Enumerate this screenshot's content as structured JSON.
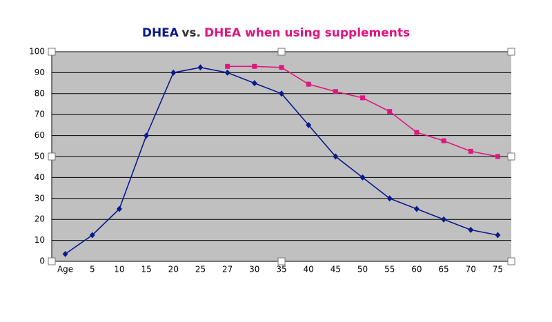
{
  "chart_data": {
    "type": "line",
    "title_connector": "vs.",
    "categories": [
      "Age",
      "5",
      "10",
      "15",
      "20",
      "25",
      "27",
      "30",
      "35",
      "40",
      "45",
      "50",
      "55",
      "60",
      "65",
      "70",
      "75"
    ],
    "series": [
      {
        "name": "DHEA",
        "color": "#0a1a8c",
        "marker": "diamond",
        "values": [
          3.5,
          12.5,
          25,
          60,
          90,
          92.5,
          90,
          85,
          80,
          65,
          50,
          40,
          30,
          25,
          20,
          15,
          12.5
        ]
      },
      {
        "name": "DHEA when using supplements",
        "color": "#e0157f",
        "marker": "square",
        "values": [
          null,
          null,
          null,
          null,
          null,
          null,
          93,
          93,
          92.5,
          84.5,
          81,
          78,
          71.5,
          61.5,
          57.5,
          52.5,
          50
        ]
      }
    ],
    "ylim": [
      0,
      100
    ],
    "yticks": [
      0,
      10,
      20,
      30,
      40,
      50,
      60,
      70,
      80,
      90,
      100
    ],
    "grid": true
  }
}
